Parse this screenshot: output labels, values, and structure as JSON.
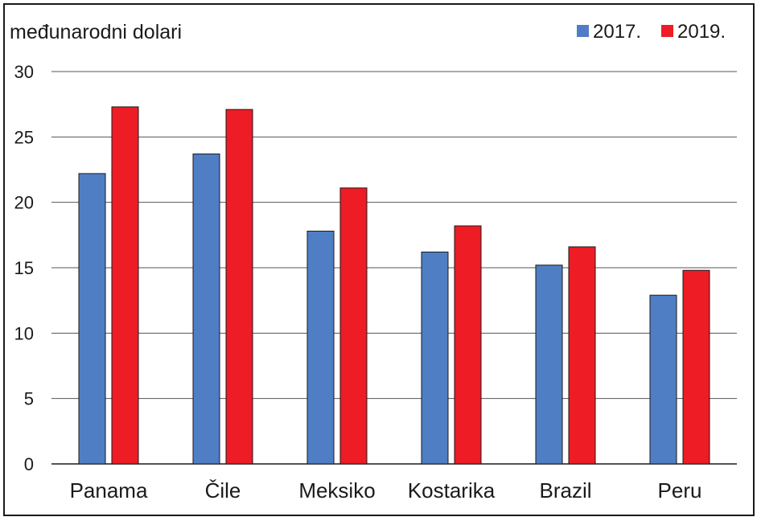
{
  "chart_data": {
    "type": "bar",
    "unit_label": "međunarodni dolari",
    "categories": [
      "Panama",
      "Čile",
      "Meksiko",
      "Kostarika",
      "Brazil",
      "Peru"
    ],
    "series": [
      {
        "name": "2017.",
        "color": "#4f7ec4",
        "values": [
          22.2,
          23.7,
          17.8,
          16.2,
          15.2,
          12.9
        ]
      },
      {
        "name": "2019.",
        "color": "#ee1c25",
        "values": [
          27.3,
          27.1,
          21.1,
          18.2,
          16.6,
          14.8
        ]
      }
    ],
    "yticks": [
      0,
      5,
      10,
      15,
      20,
      25,
      30
    ],
    "ylim": [
      0,
      30
    ],
    "grid": true,
    "legend_position": "top-right"
  }
}
